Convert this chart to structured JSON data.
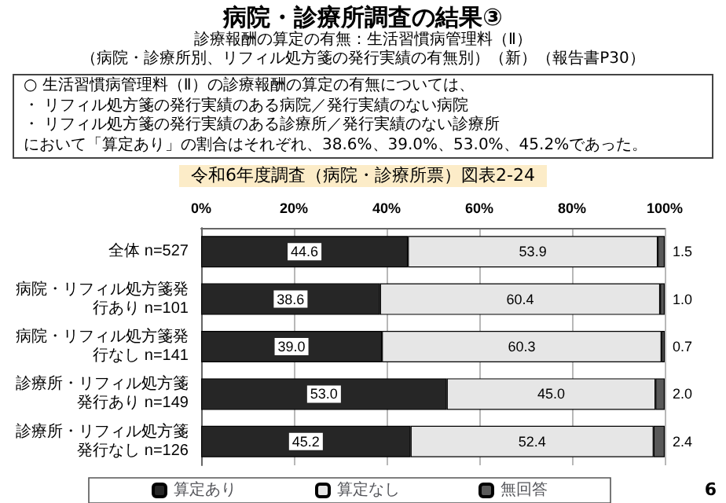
{
  "chart_data": {
    "type": "bar",
    "orientation": "horizontal",
    "stacked": true,
    "title": "病院・診療所調査の結果③",
    "subtitle": "診療報酬の算定の有無：生活習慣病管理料（Ⅱ）",
    "annotations": [
      "（病院・診療所別、リフィル処方箋の発行実績の有無別）（新）（報告書P30）",
      "○ 生活習慣病管理料（Ⅱ）の診療報酬の算定の有無については、",
      "・ リフィル処方箋の発行実績のある病院／発行実績のない病院",
      "・ リフィル処方箋の発行実績のある診療所／発行実績のない診療所",
      "において「算定あり」の割合はそれぞれ、38.6%、39.0%、53.0%、45.2%であった。",
      "令和6年度調査（病院・診療所票）図表2-24",
      "6"
    ],
    "categories": [
      "全体 n=527",
      "病院・リフィル処方箋発行あり n=101",
      "病院・リフィル処方箋発行なし n=141",
      "診療所・リフィル処方箋発行あり n=149",
      "診療所・リフィル処方箋発行なし n=126"
    ],
    "series": [
      {
        "name": "算定あり",
        "color": "#262626",
        "values": [
          44.6,
          38.6,
          39.0,
          53.0,
          45.2
        ],
        "value_labels": [
          "44.6",
          "38.6",
          "39.0",
          "53.0",
          "45.2"
        ]
      },
      {
        "name": "算定なし",
        "color": "#e6e6e6",
        "values": [
          53.9,
          60.4,
          60.3,
          45.0,
          52.4
        ],
        "value_labels": [
          "53.9",
          "60.4",
          "60.3",
          "45.0",
          "52.4"
        ]
      },
      {
        "name": "無回答",
        "color": "#595959",
        "values": [
          1.5,
          1.0,
          0.7,
          2.0,
          2.4
        ],
        "value_labels": [
          "1.5",
          "1.0",
          "0.7",
          "2.0",
          "2.4"
        ]
      }
    ],
    "xlim": [
      0,
      100
    ],
    "xticks": [
      {
        "value": 0,
        "label": "0%"
      },
      {
        "value": 20,
        "label": "20%"
      },
      {
        "value": 40,
        "label": "40%"
      },
      {
        "value": 60,
        "label": "60%"
      },
      {
        "value": 80,
        "label": "80%"
      },
      {
        "value": 100,
        "label": "100%"
      }
    ],
    "grid": "x",
    "legend": "bottom"
  }
}
